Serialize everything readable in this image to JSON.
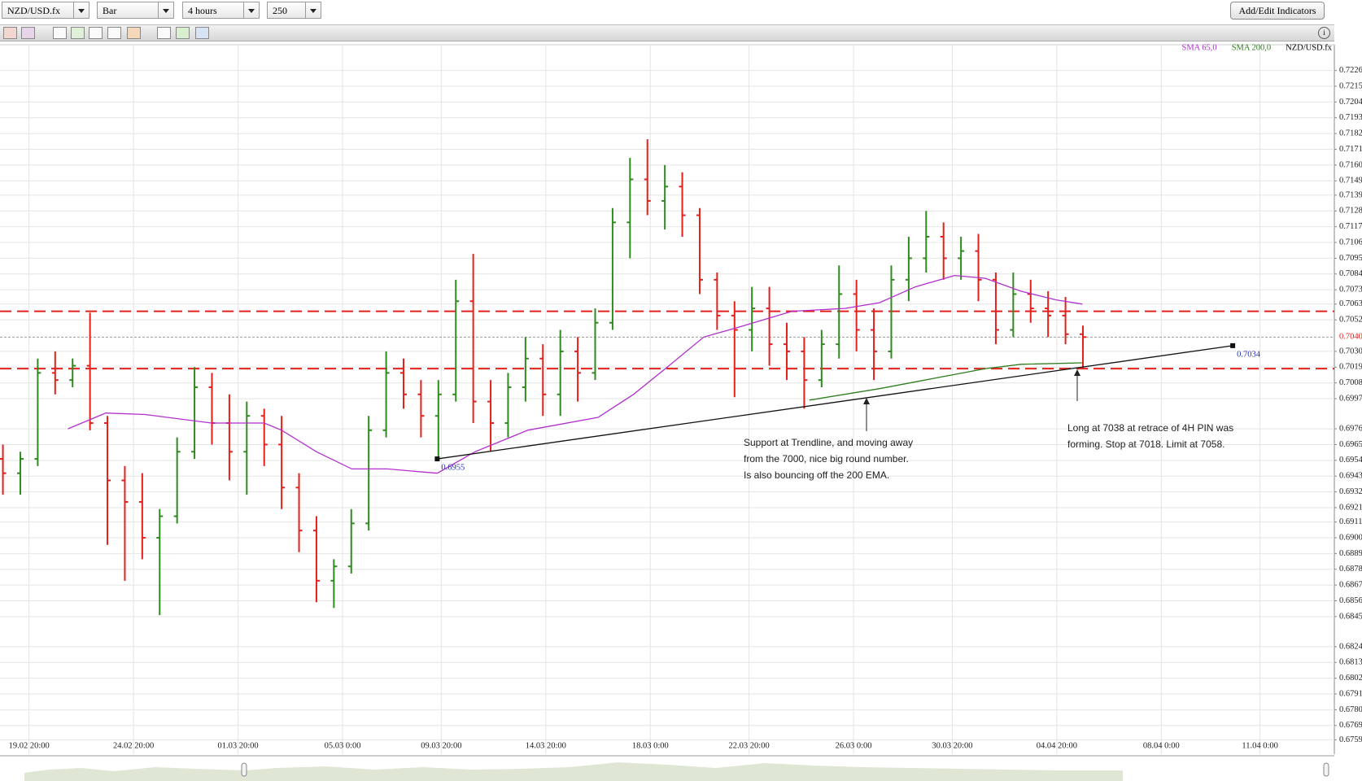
{
  "toolbar": {
    "symbol": "NZD/USD.fx",
    "chart_style": "Bar",
    "interval": "4 hours",
    "bar_count": "250",
    "indicators_button": "Add/Edit Indicators"
  },
  "chart_data": {
    "type": "ohlc",
    "grid": true,
    "xlim": [
      0,
      229.8
    ],
    "ylim": [
      0.6749,
      0.7236
    ],
    "xticks": [
      {
        "value": 5,
        "label": "19.02 20:00"
      },
      {
        "value": 23,
        "label": "24.02 20:00"
      },
      {
        "value": 41,
        "label": "01.03 20:00"
      },
      {
        "value": 59,
        "label": "05.03 0:00"
      },
      {
        "value": 76,
        "label": "09.03 20:00"
      },
      {
        "value": 94,
        "label": "14.03 20:00"
      },
      {
        "value": 112,
        "label": "18.03 0:00"
      },
      {
        "value": 129,
        "label": "22.03 20:00"
      },
      {
        "value": 147,
        "label": "26.03 0:00"
      },
      {
        "value": 164,
        "label": "30.03 20:00"
      },
      {
        "value": 182,
        "label": "04.04 20:00"
      },
      {
        "value": 200,
        "label": "08.04 0:00"
      },
      {
        "value": 217,
        "label": "11.04 0:00"
      }
    ],
    "yticks": [
      0.7226,
      0.7215,
      0.7204,
      0.7193,
      0.7182,
      0.7171,
      {
        "value": 0.716,
        "label": "0.7160"
      },
      0.7149,
      0.7139,
      0.7128,
      0.7117,
      0.7106,
      0.7095,
      0.7084,
      0.7073,
      0.7063,
      0.7052,
      {
        "value": 0.703,
        "label": "0.7030"
      },
      0.7019,
      0.7008,
      0.6997,
      0.6976,
      0.6965,
      0.6954,
      0.6943,
      0.6932,
      0.6921,
      0.6911,
      {
        "value": 0.69,
        "label": "0.6900"
      },
      0.6889,
      0.6878,
      0.6867,
      0.6856,
      0.6845,
      0.6824,
      0.6813,
      0.6802,
      0.6791,
      {
        "value": 0.678,
        "label": "0.6780"
      },
      0.6769,
      0.6759
    ],
    "series": [
      {
        "name": "NZD/USD.fx",
        "color": "#000000",
        "up_color": "#2f8a1f",
        "down_color": "#e3201c",
        "x": [
          0.5,
          3.5,
          6.5,
          9.5,
          12.5,
          15.5,
          18.5,
          21.5,
          24.5,
          27.5,
          30.5,
          33.5,
          36.5,
          39.5,
          42.5,
          45.5,
          48.5,
          51.5,
          54.5,
          57.5,
          60.5,
          63.5,
          66.5,
          69.5,
          72.5,
          75.5,
          78.5,
          81.5,
          84.5,
          87.5,
          90.5,
          93.5,
          96.5,
          99.5,
          102.5,
          105.5,
          108.5,
          111.5,
          114.5,
          117.5,
          120.5,
          123.5,
          126.5,
          129.5,
          132.5,
          135.5,
          138.5,
          141.5,
          144.5,
          147.5,
          150.5,
          153.5,
          156.5,
          159.5,
          162.5,
          165.5,
          168.5,
          171.5,
          174.5,
          177.5,
          180.5,
          183.5,
          186.5
        ],
        "open": [
          0.6955,
          0.6945,
          0.6955,
          0.7015,
          0.701,
          0.702,
          0.698,
          0.694,
          0.6925,
          0.69,
          0.6915,
          0.696,
          0.7005,
          0.698,
          0.696,
          0.6985,
          0.6965,
          0.6935,
          0.6905,
          0.687,
          0.688,
          0.691,
          0.6975,
          0.7015,
          0.7,
          0.6985,
          0.7,
          0.7065,
          0.6995,
          0.698,
          0.7005,
          0.7025,
          0.7,
          0.703,
          0.7015,
          0.705,
          0.712,
          0.715,
          0.7135,
          0.7145,
          0.7125,
          0.708,
          0.7055,
          0.7045,
          0.706,
          0.7035,
          0.703,
          0.701,
          0.7035,
          0.707,
          0.7045,
          0.703,
          0.708,
          0.7095,
          0.711,
          0.7095,
          0.71,
          0.708,
          0.7045,
          0.707,
          0.706,
          0.7055,
          0.7042
        ],
        "high": [
          0.6965,
          0.696,
          0.7025,
          0.703,
          0.7025,
          0.7057,
          0.6985,
          0.695,
          0.6945,
          0.692,
          0.697,
          0.7019,
          0.7015,
          0.7,
          0.6995,
          0.699,
          0.6985,
          0.6945,
          0.6915,
          0.6885,
          0.692,
          0.6985,
          0.703,
          0.7025,
          0.701,
          0.701,
          0.708,
          0.7098,
          0.701,
          0.7015,
          0.704,
          0.7035,
          0.7045,
          0.704,
          0.706,
          0.713,
          0.7165,
          0.7178,
          0.716,
          0.7155,
          0.713,
          0.7085,
          0.7065,
          0.7075,
          0.7075,
          0.705,
          0.704,
          0.7045,
          0.709,
          0.708,
          0.706,
          0.709,
          0.711,
          0.7128,
          0.712,
          0.711,
          0.7112,
          0.7085,
          0.7085,
          0.708,
          0.7072,
          0.7068,
          0.7048
        ],
        "low": [
          0.693,
          0.693,
          0.695,
          0.7,
          0.7005,
          0.6975,
          0.6895,
          0.687,
          0.6885,
          0.6846,
          0.691,
          0.6955,
          0.6965,
          0.694,
          0.693,
          0.695,
          0.692,
          0.689,
          0.6855,
          0.6851,
          0.6875,
          0.6905,
          0.697,
          0.699,
          0.697,
          0.6955,
          0.6995,
          0.698,
          0.696,
          0.697,
          0.6995,
          0.6985,
          0.6985,
          0.6995,
          0.701,
          0.7045,
          0.7095,
          0.7125,
          0.7115,
          0.711,
          0.707,
          0.7045,
          0.6998,
          0.703,
          0.702,
          0.701,
          0.699,
          0.7005,
          0.7025,
          0.703,
          0.701,
          0.7025,
          0.7065,
          0.7085,
          0.708,
          0.708,
          0.7065,
          0.7035,
          0.704,
          0.705,
          0.704,
          0.7035,
          0.7018
        ],
        "close": [
          0.6945,
          0.6955,
          0.7015,
          0.701,
          0.702,
          0.698,
          0.694,
          0.6925,
          0.69,
          0.6915,
          0.696,
          0.7005,
          0.698,
          0.696,
          0.6985,
          0.6965,
          0.6935,
          0.6905,
          0.687,
          0.688,
          0.691,
          0.6975,
          0.7015,
          0.7,
          0.6985,
          0.7,
          0.7065,
          0.6995,
          0.698,
          0.7005,
          0.7025,
          0.7,
          0.703,
          0.7015,
          0.705,
          0.712,
          0.715,
          0.7135,
          0.7145,
          0.7125,
          0.708,
          0.7055,
          0.7045,
          0.706,
          0.7035,
          0.703,
          0.701,
          0.7035,
          0.707,
          0.7045,
          0.703,
          0.708,
          0.7095,
          0.711,
          0.7095,
          0.71,
          0.708,
          0.7045,
          0.707,
          0.706,
          0.7055,
          0.7042,
          0.704
        ]
      },
      {
        "name": "SMA 65,0",
        "color": "#b22fcc",
        "x": [
          11.7,
          18.2,
          25,
          36.4,
          45.5,
          48.5,
          54.5,
          60.6,
          66.7,
          75.3,
          81.8,
          90.9,
          103,
          109.1,
          115.2,
          121.2,
          127.3,
          136.4,
          145.5,
          151.5,
          157.6,
          164.4,
          169.7,
          175.8,
          181.8,
          186.4
        ],
        "values": [
          0.6976,
          0.6987,
          0.6986,
          0.698,
          0.698,
          0.6975,
          0.696,
          0.6948,
          0.6948,
          0.6945,
          0.696,
          0.6975,
          0.6984,
          0.7,
          0.702,
          0.704,
          0.7047,
          0.7058,
          0.706,
          0.7064,
          0.7075,
          0.7083,
          0.7081,
          0.7072,
          0.7066,
          0.7063
        ]
      },
      {
        "name": "SMA 200,0",
        "color": "#2e7d1e",
        "x": [
          139.4,
          151.5,
          160.6,
          169.7,
          175.8,
          186.4
        ],
        "values": [
          0.6996,
          0.7004,
          0.7011,
          0.7018,
          0.7021,
          0.7022
        ]
      }
    ],
    "levels": [
      {
        "value": 0.7058,
        "color": "#e3201c"
      },
      {
        "value": 0.7018,
        "color": "#e3201c"
      }
    ],
    "last_price": {
      "value": 0.704,
      "label": "0.7040",
      "color": "#e3201c"
    },
    "trendline": {
      "x": [
        75.3,
        212.3
      ],
      "values": [
        0.6955,
        0.7034
      ],
      "value_labels": [
        "0.6955",
        "0.7034"
      ],
      "color": "#2233bb"
    },
    "annotations": [
      {
        "lines": [
          "Support at Trendline, and moving away",
          "from the 7000, nice big round number.",
          "Is also bouncing off the 200 EMA."
        ]
      },
      {
        "lines": [
          "Long at 7038 at retrace of 4H PIN was",
          "forming. Stop at 7018. Limit at 7058."
        ]
      }
    ]
  }
}
